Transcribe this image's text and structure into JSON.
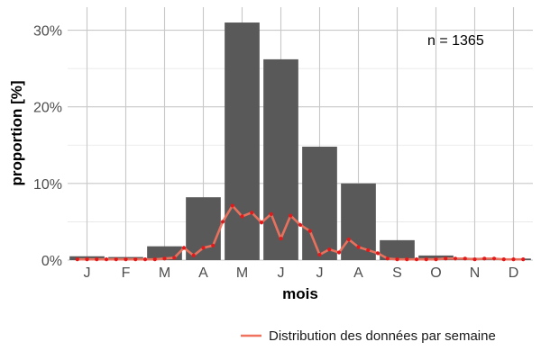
{
  "chart_data": {
    "type": "bar",
    "categories": [
      "J",
      "F",
      "M",
      "A",
      "M",
      "J",
      "J",
      "A",
      "S",
      "O",
      "N",
      "D"
    ],
    "values": [
      0.5,
      0.4,
      1.8,
      8.2,
      31.0,
      26.2,
      14.8,
      10.0,
      2.6,
      0.6,
      0.3,
      0.2
    ],
    "xlabel": "mois",
    "ylabel": "proportion [%]",
    "ylim": [
      0,
      33
    ],
    "yticks": [
      0,
      10,
      20,
      30
    ],
    "ytick_labels": [
      "0%",
      "10%",
      "20%",
      "30%"
    ],
    "grid": true,
    "bar_color": "#595959",
    "annotation": "n = 1365",
    "weekly_series": {
      "name": "Distribution des données par semaine",
      "color": "#f0735f",
      "point_color": "#e31a1c",
      "x": [
        0.75,
        1.0,
        1.25,
        1.5,
        1.75,
        2.0,
        2.25,
        2.5,
        2.75,
        3.0,
        3.25,
        3.5,
        3.75,
        4.0,
        4.25,
        4.5,
        4.75,
        5.0,
        5.25,
        5.5,
        5.75,
        6.0,
        6.25,
        6.5,
        6.75,
        7.0,
        7.25,
        7.5,
        7.75,
        8.0,
        8.25,
        8.5,
        8.75,
        9.0,
        9.25,
        9.5,
        9.75,
        10.0,
        10.25,
        10.5,
        10.75,
        11.0,
        11.25,
        11.5,
        11.75,
        12.0,
        12.25
      ],
      "y": [
        0.1,
        0.1,
        0.1,
        0.1,
        0.1,
        0.1,
        0.1,
        0.1,
        0.1,
        0.2,
        0.3,
        1.6,
        0.6,
        1.6,
        1.9,
        5.0,
        7.1,
        5.7,
        6.2,
        4.9,
        6.0,
        2.8,
        5.8,
        4.6,
        3.8,
        0.7,
        1.4,
        1.0,
        2.7,
        1.7,
        1.3,
        0.9,
        0.2,
        0.1,
        0.1,
        0.1,
        0.1,
        0.1,
        0.2,
        0.2,
        0.2,
        0.1,
        0.2,
        0.2,
        0.1,
        0.1,
        0.1
      ]
    },
    "legend_position": "bottom-right"
  }
}
